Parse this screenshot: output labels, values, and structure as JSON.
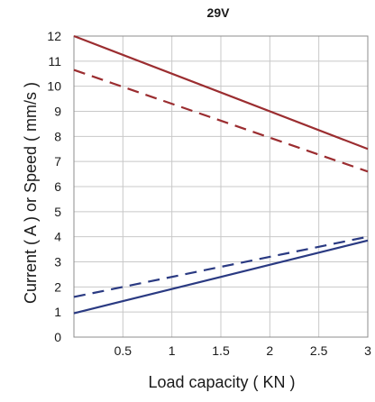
{
  "chart_data": {
    "type": "line",
    "title": "29V",
    "xlabel": "Load capacity ( KN )",
    "ylabel": "Current ( A ) or Speed ( mm/s )",
    "xlim": [
      0,
      3
    ],
    "ylim": [
      0,
      12
    ],
    "x_ticks": [
      0.5,
      1,
      1.5,
      2,
      2.5,
      3
    ],
    "x_tick_labels": [
      "0.5",
      "1",
      "1.5",
      "2",
      "2.5",
      "3"
    ],
    "y_ticks": [
      0,
      1,
      2,
      3,
      4,
      5,
      6,
      7,
      8,
      9,
      10,
      11,
      12
    ],
    "y_tick_labels": [
      "0",
      "1",
      "2",
      "3",
      "4",
      "5",
      "6",
      "7",
      "8",
      "9",
      "10",
      "11",
      "12"
    ],
    "grid": true,
    "legend": "none",
    "series": [
      {
        "color": "#9b2d30",
        "style": "solid",
        "points": [
          [
            0,
            12.0
          ],
          [
            3,
            7.5
          ]
        ]
      },
      {
        "color": "#9b2d30",
        "style": "dashed",
        "points": [
          [
            0,
            10.65
          ],
          [
            3,
            6.6
          ]
        ]
      },
      {
        "color": "#2a3a82",
        "style": "solid",
        "points": [
          [
            0,
            0.95
          ],
          [
            3,
            3.85
          ]
        ]
      },
      {
        "color": "#2a3a82",
        "style": "dashed",
        "points": [
          [
            0,
            1.6
          ],
          [
            3,
            4.0
          ]
        ]
      }
    ]
  }
}
